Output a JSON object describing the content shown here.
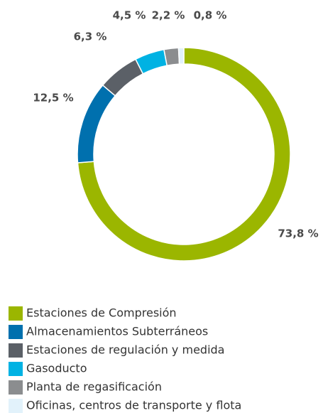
{
  "chart_data": {
    "type": "donut",
    "categories": [
      "Estaciones de Compresión",
      "Almacenamientos Subterráneos",
      "Estaciones de regulación y medida",
      "Gasoducto",
      "Planta de regasificación",
      "Oficinas, centros de transporte y flota"
    ],
    "values": [
      73.8,
      12.5,
      6.3,
      4.5,
      2.2,
      0.8
    ],
    "value_labels": [
      "73,8 %",
      "12,5 %",
      "6,3 %",
      "4,5 %",
      "2,2 %",
      "0,8 %"
    ],
    "colors": [
      "#9bb600",
      "#0070ae",
      "#5b6067",
      "#00b2e3",
      "#8b8d8f",
      "#e2f2fb"
    ]
  }
}
